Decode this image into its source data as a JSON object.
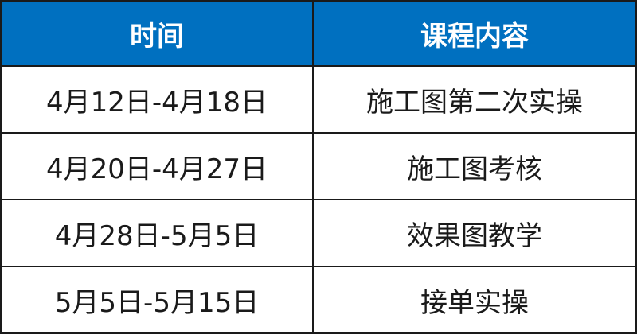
{
  "colors": {
    "header_bg": "#0070C0",
    "header_text": "#ffffff"
  },
  "table": {
    "headers": [
      "时间",
      "课程内容"
    ],
    "rows": [
      [
        "4月12日-4月18日",
        "施工图第二次实操"
      ],
      [
        "4月20日-4月27日",
        "施工图考核"
      ],
      [
        "4月28日-5月5日",
        "效果图教学"
      ],
      [
        "5月5日-5月15日",
        "接单实操"
      ]
    ]
  }
}
